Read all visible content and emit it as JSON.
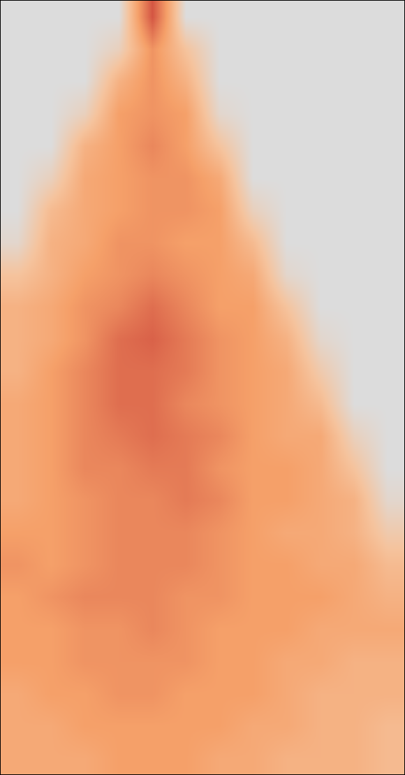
{
  "chart_data": {
    "type": "heatmap",
    "color": "Reds",
    "tick_labels": false,
    "grid": false,
    "zlim": [
      0,
      1
    ],
    "cells": [
      [
        0,
        0,
        0,
        0,
        0.7,
        0,
        0,
        0,
        0,
        0,
        0,
        0
      ],
      [
        0,
        0,
        0,
        0.1,
        0.45,
        0.2,
        0,
        0,
        0,
        0,
        0,
        0
      ],
      [
        0,
        0,
        0,
        0.3,
        0.45,
        0.3,
        0,
        0,
        0,
        0,
        0,
        0
      ],
      [
        0,
        0,
        0.1,
        0.4,
        0.45,
        0.4,
        0.05,
        0,
        0,
        0,
        0,
        0
      ],
      [
        0,
        0,
        0.3,
        0.4,
        0.5,
        0.4,
        0.2,
        0,
        0,
        0,
        0,
        0
      ],
      [
        0,
        0.1,
        0.35,
        0.4,
        0.45,
        0.45,
        0.35,
        0,
        0,
        0,
        0,
        0
      ],
      [
        0,
        0.25,
        0.35,
        0.4,
        0.45,
        0.45,
        0.4,
        0.1,
        0,
        0,
        0,
        0
      ],
      [
        0.05,
        0.3,
        0.35,
        0.45,
        0.45,
        0.4,
        0.4,
        0.25,
        0,
        0,
        0,
        0
      ],
      [
        0.2,
        0.3,
        0.4,
        0.45,
        0.5,
        0.45,
        0.4,
        0.35,
        0.05,
        0,
        0,
        0
      ],
      [
        0.3,
        0.35,
        0.45,
        0.5,
        0.6,
        0.5,
        0.4,
        0.4,
        0.2,
        0,
        0,
        0
      ],
      [
        0.3,
        0.35,
        0.45,
        0.6,
        0.65,
        0.55,
        0.45,
        0.4,
        0.3,
        0.05,
        0,
        0
      ],
      [
        0.3,
        0.4,
        0.5,
        0.6,
        0.6,
        0.55,
        0.45,
        0.4,
        0.35,
        0.15,
        0,
        0
      ],
      [
        0.35,
        0.4,
        0.5,
        0.6,
        0.6,
        0.5,
        0.45,
        0.4,
        0.35,
        0.25,
        0,
        0
      ],
      [
        0.35,
        0.4,
        0.5,
        0.55,
        0.6,
        0.55,
        0.5,
        0.4,
        0.35,
        0.35,
        0.1,
        0
      ],
      [
        0.35,
        0.4,
        0.5,
        0.5,
        0.55,
        0.55,
        0.45,
        0.4,
        0.4,
        0.35,
        0.2,
        0
      ],
      [
        0.35,
        0.4,
        0.45,
        0.5,
        0.5,
        0.55,
        0.5,
        0.4,
        0.4,
        0.35,
        0.3,
        0.05
      ],
      [
        0.4,
        0.4,
        0.45,
        0.5,
        0.5,
        0.5,
        0.45,
        0.4,
        0.35,
        0.35,
        0.3,
        0.15
      ],
      [
        0.45,
        0.4,
        0.45,
        0.5,
        0.5,
        0.5,
        0.45,
        0.4,
        0.4,
        0.35,
        0.35,
        0.25
      ],
      [
        0.4,
        0.45,
        0.5,
        0.5,
        0.5,
        0.45,
        0.45,
        0.4,
        0.4,
        0.4,
        0.35,
        0.3
      ],
      [
        0.4,
        0.4,
        0.45,
        0.45,
        0.5,
        0.45,
        0.4,
        0.4,
        0.4,
        0.35,
        0.35,
        0.35
      ],
      [
        0.4,
        0.4,
        0.45,
        0.45,
        0.45,
        0.45,
        0.4,
        0.4,
        0.35,
        0.35,
        0.3,
        0.3
      ],
      [
        0.35,
        0.4,
        0.4,
        0.45,
        0.45,
        0.4,
        0.4,
        0.4,
        0.35,
        0.3,
        0.3,
        0.3
      ],
      [
        0.35,
        0.35,
        0.4,
        0.4,
        0.4,
        0.4,
        0.4,
        0.35,
        0.35,
        0.3,
        0.3,
        0.25
      ],
      [
        0.35,
        0.35,
        0.35,
        0.4,
        0.4,
        0.4,
        0.35,
        0.35,
        0.3,
        0.3,
        0.3,
        0.25
      ]
    ]
  }
}
